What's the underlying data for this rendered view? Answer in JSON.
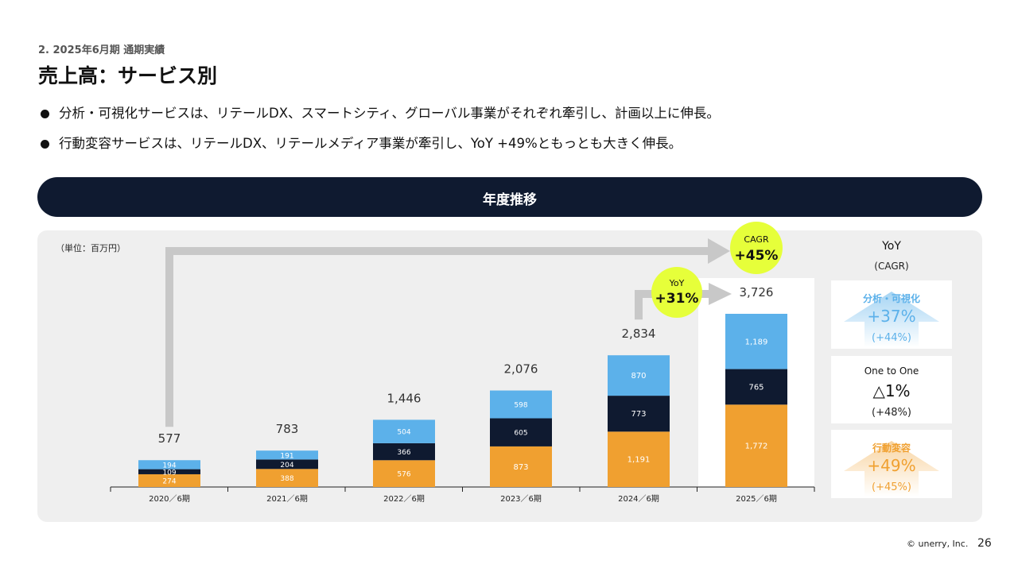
{
  "header": {
    "section": "2. 2025年6月期 通期実績",
    "title": "売上高：サービス別"
  },
  "bullets": [
    "分析・可視化サービスは、リテールDX、スマートシティ、グローバル事業がそれぞれ牽引し、計画以上に伸長。",
    "行動変容サービスは、リテールDX、リテールメディア事業が牽引し、YoY +49%ともっとも大きく伸長。"
  ],
  "band": {
    "title": "年度推移"
  },
  "unit": "（単位：百万円）",
  "chart_data": {
    "type": "bar",
    "stacked": true,
    "categories": [
      "2020／6期",
      "2021／6期",
      "2022／6期",
      "2023／6期",
      "2024／6期",
      "2025／6期"
    ],
    "series": [
      {
        "name": "行動変容",
        "color": "#f0a030",
        "values": [
          274,
          388,
          576,
          873,
          1191,
          1772
        ]
      },
      {
        "name": "One to One",
        "color": "#0f1a30",
        "values": [
          109,
          204,
          366,
          605,
          773,
          765
        ]
      },
      {
        "name": "分析・可視化",
        "color": "#5cb1ea",
        "values": [
          194,
          191,
          504,
          598,
          870,
          1189
        ]
      }
    ],
    "totals": [
      "577",
      "783",
      "1,446",
      "2,076",
      "2,834",
      "3,726"
    ],
    "value_labels": [
      [
        "274",
        "388",
        "576",
        "873",
        "1,191",
        "1,772"
      ],
      [
        "109",
        "204",
        "366",
        "605",
        "773",
        "765"
      ],
      [
        "194",
        "191",
        "504",
        "598",
        "870",
        "1,189"
      ]
    ],
    "highlight_category": "2025／6期",
    "annotations": [
      {
        "label": "YoY",
        "value": "+31%",
        "from": "2024／6期",
        "to": "2025／6期"
      },
      {
        "label": "CAGR",
        "value": "+45%",
        "from": "2020／6期",
        "to": "2025／6期"
      }
    ],
    "ylim": [
      0,
      3726
    ]
  },
  "right_panel": {
    "title": "YoY",
    "subtitle": "(CAGR)",
    "cards": [
      {
        "label": "分析・可視化",
        "value": "+37%",
        "sub": "(+44%)",
        "color": "#5cb1ea",
        "arrow": "up"
      },
      {
        "label": "One to One",
        "value": "△1%",
        "sub": "(+48%)",
        "color": "#111111",
        "arrow": "none"
      },
      {
        "label": "行動変容",
        "value": "+49%",
        "sub": "(+45%)",
        "color": "#f0a030",
        "arrow": "up"
      }
    ]
  },
  "footer": {
    "copyright": "© unerry, Inc.",
    "page": "26"
  }
}
